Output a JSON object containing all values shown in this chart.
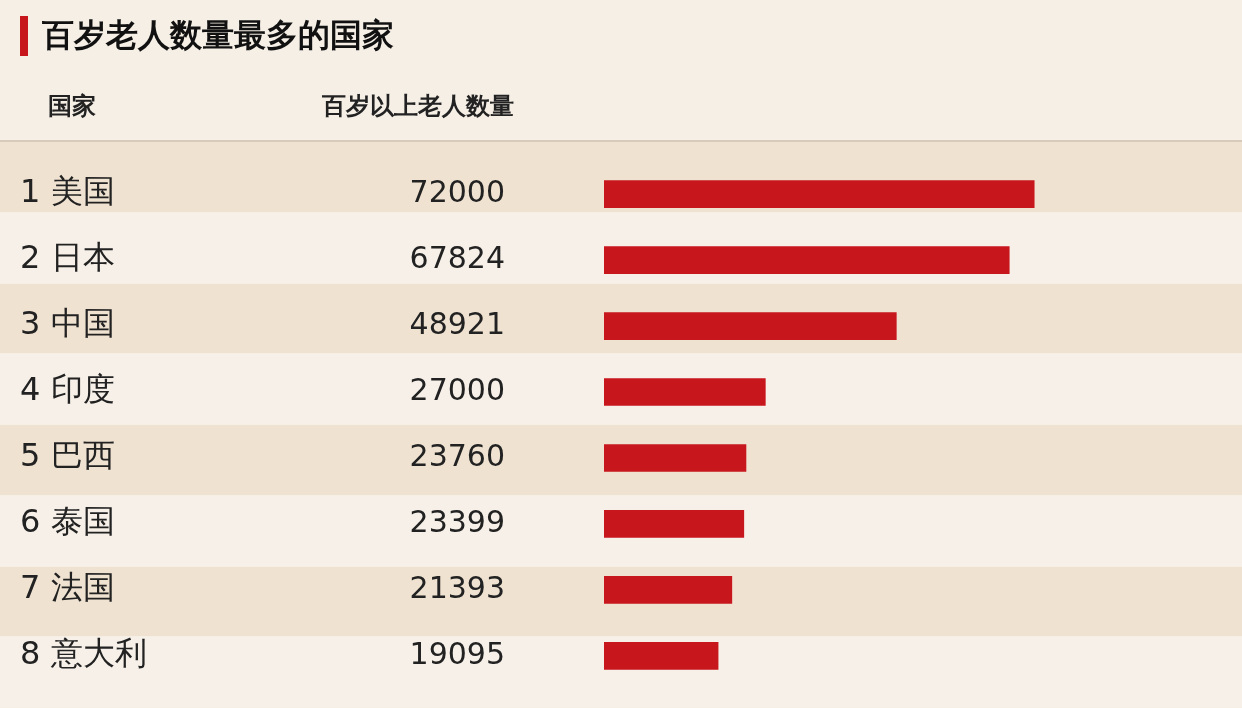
{
  "chart_data": {
    "type": "bar",
    "orientation": "horizontal",
    "title": "百岁老人数量最多的国家",
    "ylabel": "国家",
    "xlabel": "百岁以上老人数量",
    "categories": [
      "1 美国",
      "2 日本",
      "3 中国",
      "4 印度",
      "5 巴西",
      "6 泰国",
      "7 法国",
      "8 意大利"
    ],
    "values": [
      72000,
      67824,
      48921,
      27000,
      23760,
      23399,
      21393,
      19095
    ],
    "color": "#c8161d",
    "data_labels": true,
    "legend": false
  }
}
